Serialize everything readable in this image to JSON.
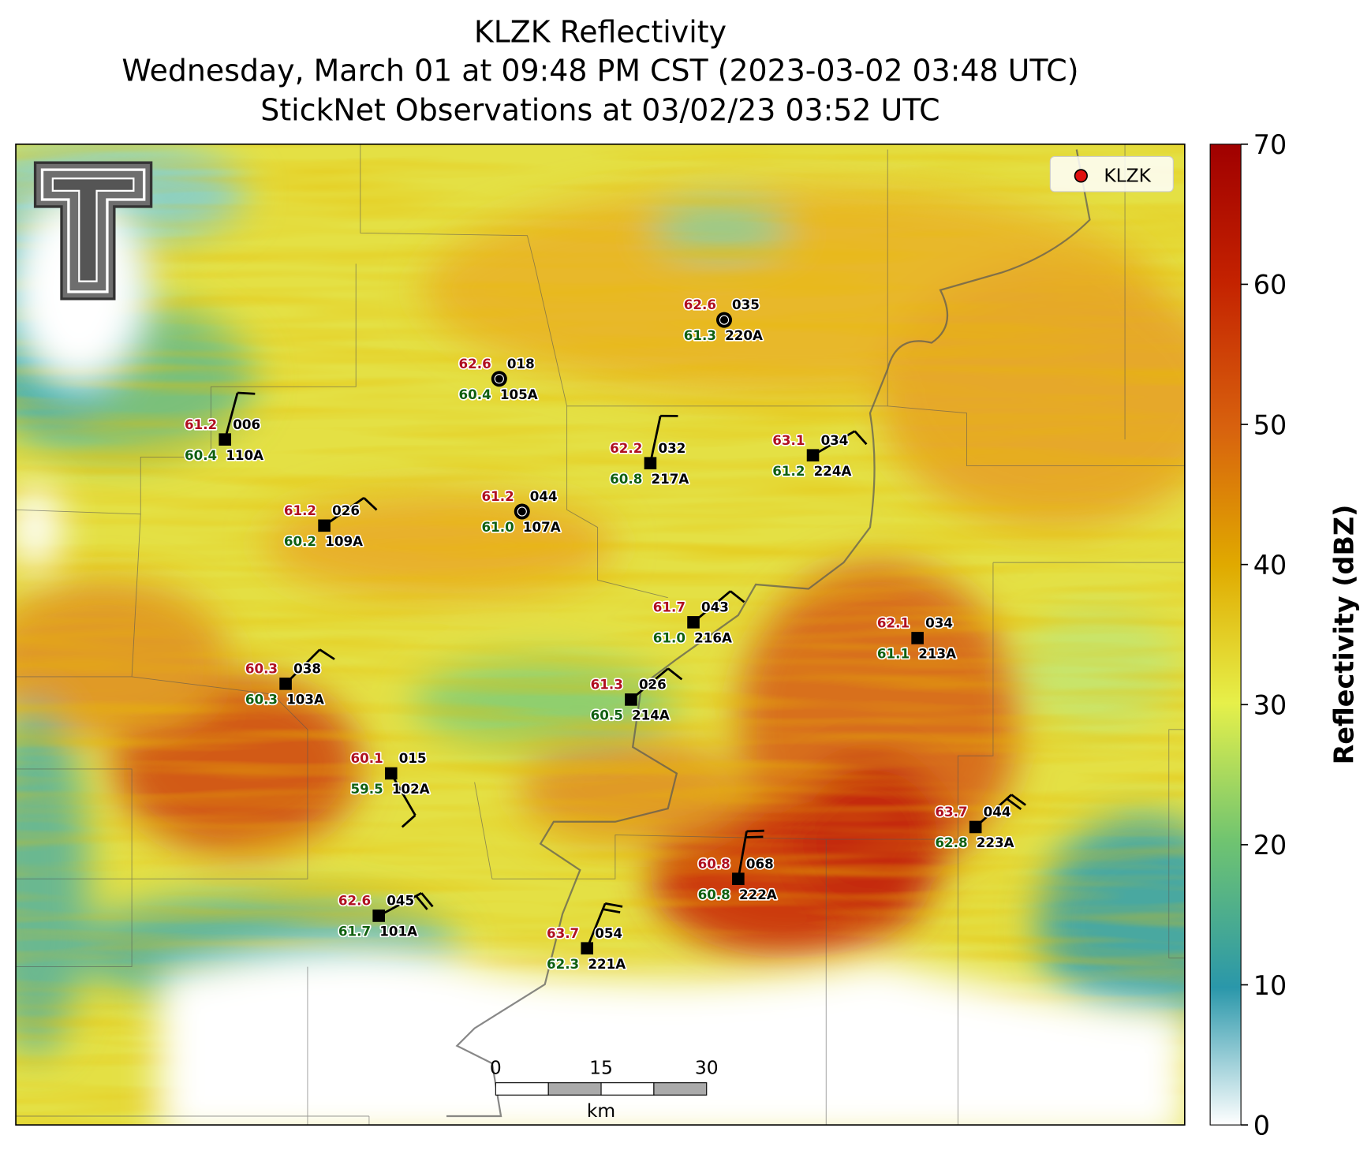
{
  "title": {
    "line1": "KLZK Reflectivity",
    "line2": "Wednesday, March 01 at 09:48 PM CST (2023-03-02 03:48 UTC)",
    "line3": "StickNet Observations at 03/02/23 03:52 UTC"
  },
  "legend": {
    "label": "KLZK"
  },
  "colorbar": {
    "label": "Reflectivity (dBZ)",
    "lim": [
      0,
      70
    ],
    "ticks": [
      0,
      10,
      20,
      30,
      40,
      50,
      60,
      70
    ]
  },
  "scale_bar": {
    "ticks": [
      0,
      15,
      30
    ],
    "unit": "km"
  },
  "stations": [
    {
      "temperature": "62.6",
      "dewpoint": "61.3",
      "code": "035",
      "id": "220A"
    },
    {
      "temperature": "62.6",
      "dewpoint": "60.4",
      "code": "018",
      "id": "105A"
    },
    {
      "temperature": "61.2",
      "dewpoint": "60.4",
      "code": "006",
      "id": "110A"
    },
    {
      "temperature": "62.2",
      "dewpoint": "60.8",
      "code": "032",
      "id": "217A"
    },
    {
      "temperature": "63.1",
      "dewpoint": "61.2",
      "code": "034",
      "id": "224A"
    },
    {
      "temperature": "61.2",
      "dewpoint": "61.0",
      "code": "044",
      "id": "107A"
    },
    {
      "temperature": "61.2",
      "dewpoint": "60.2",
      "code": "026",
      "id": "109A"
    },
    {
      "temperature": "61.7",
      "dewpoint": "61.0",
      "code": "043",
      "id": "216A"
    },
    {
      "temperature": "62.1",
      "dewpoint": "61.1",
      "code": "034",
      "id": "213A"
    },
    {
      "temperature": "60.3",
      "dewpoint": "60.3",
      "code": "038",
      "id": "103A"
    },
    {
      "temperature": "61.3",
      "dewpoint": "60.5",
      "code": "026",
      "id": "214A"
    },
    {
      "temperature": "60.1",
      "dewpoint": "59.5",
      "code": "015",
      "id": "102A"
    },
    {
      "temperature": "63.7",
      "dewpoint": "62.8",
      "code": "044",
      "id": "223A"
    },
    {
      "temperature": "60.8",
      "dewpoint": "60.8",
      "code": "068",
      "id": "222A"
    },
    {
      "temperature": "62.6",
      "dewpoint": "61.7",
      "code": "045",
      "id": "101A"
    },
    {
      "temperature": "63.7",
      "dewpoint": "62.3",
      "code": "054",
      "id": "221A"
    }
  ]
}
